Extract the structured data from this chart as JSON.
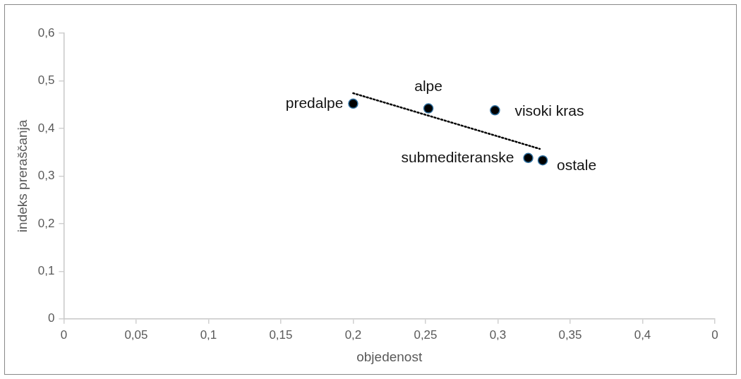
{
  "chart_data": {
    "type": "scatter",
    "xlabel": "objedenost",
    "ylabel": "indeks preraščanja",
    "xlim": [
      0,
      0.45
    ],
    "xticks": [
      0,
      {
        "value": 0.05,
        "label": "0,05"
      },
      {
        "value": 0.1,
        "label": "0,1"
      },
      {
        "value": 0.15,
        "label": "0,15"
      },
      {
        "value": 0.2,
        "label": "0,2"
      },
      {
        "value": 0.25,
        "label": "0,25"
      },
      {
        "value": 0.3,
        "label": "0,3"
      },
      {
        "value": 0.35,
        "label": "0,35"
      },
      {
        "value": 0.4,
        "label": "0,4"
      },
      {
        "value": 0.45,
        "label": "0"
      }
    ],
    "ylim": [
      0,
      0.6
    ],
    "yticks": [
      0,
      {
        "value": 0.1,
        "label": "0,1"
      },
      {
        "value": 0.2,
        "label": "0,2"
      },
      {
        "value": 0.3,
        "label": "0,3"
      },
      {
        "value": 0.4,
        "label": "0,4"
      },
      {
        "value": 0.5,
        "label": "0,5"
      },
      {
        "value": 0.6,
        "label": "0,6"
      }
    ],
    "grid": false,
    "legend": false,
    "marker": "circle",
    "series": [
      {
        "color": "#000000",
        "x": [
          0.2,
          0.252,
          0.298,
          0.321,
          0.331
        ],
        "values": [
          0.452,
          0.442,
          0.438,
          0.338,
          0.333
        ]
      },
      {
        "type": "line",
        "color": "#000000",
        "line_style": "dotted",
        "marker": "none",
        "x": [
          0.2,
          0.329
        ],
        "values": [
          0.474,
          0.357
        ]
      }
    ],
    "annotations": [
      {
        "text": "predalpe",
        "x": 0.2,
        "y": 0.452
      },
      {
        "text": "alpe",
        "x": 0.252,
        "y": 0.442
      },
      {
        "text": "visoki kras",
        "x": 0.298,
        "y": 0.438
      },
      {
        "text": "submediteranske",
        "x": 0.321,
        "y": 0.338
      },
      {
        "text": "ostale",
        "x": 0.331,
        "y": 0.333
      }
    ]
  }
}
